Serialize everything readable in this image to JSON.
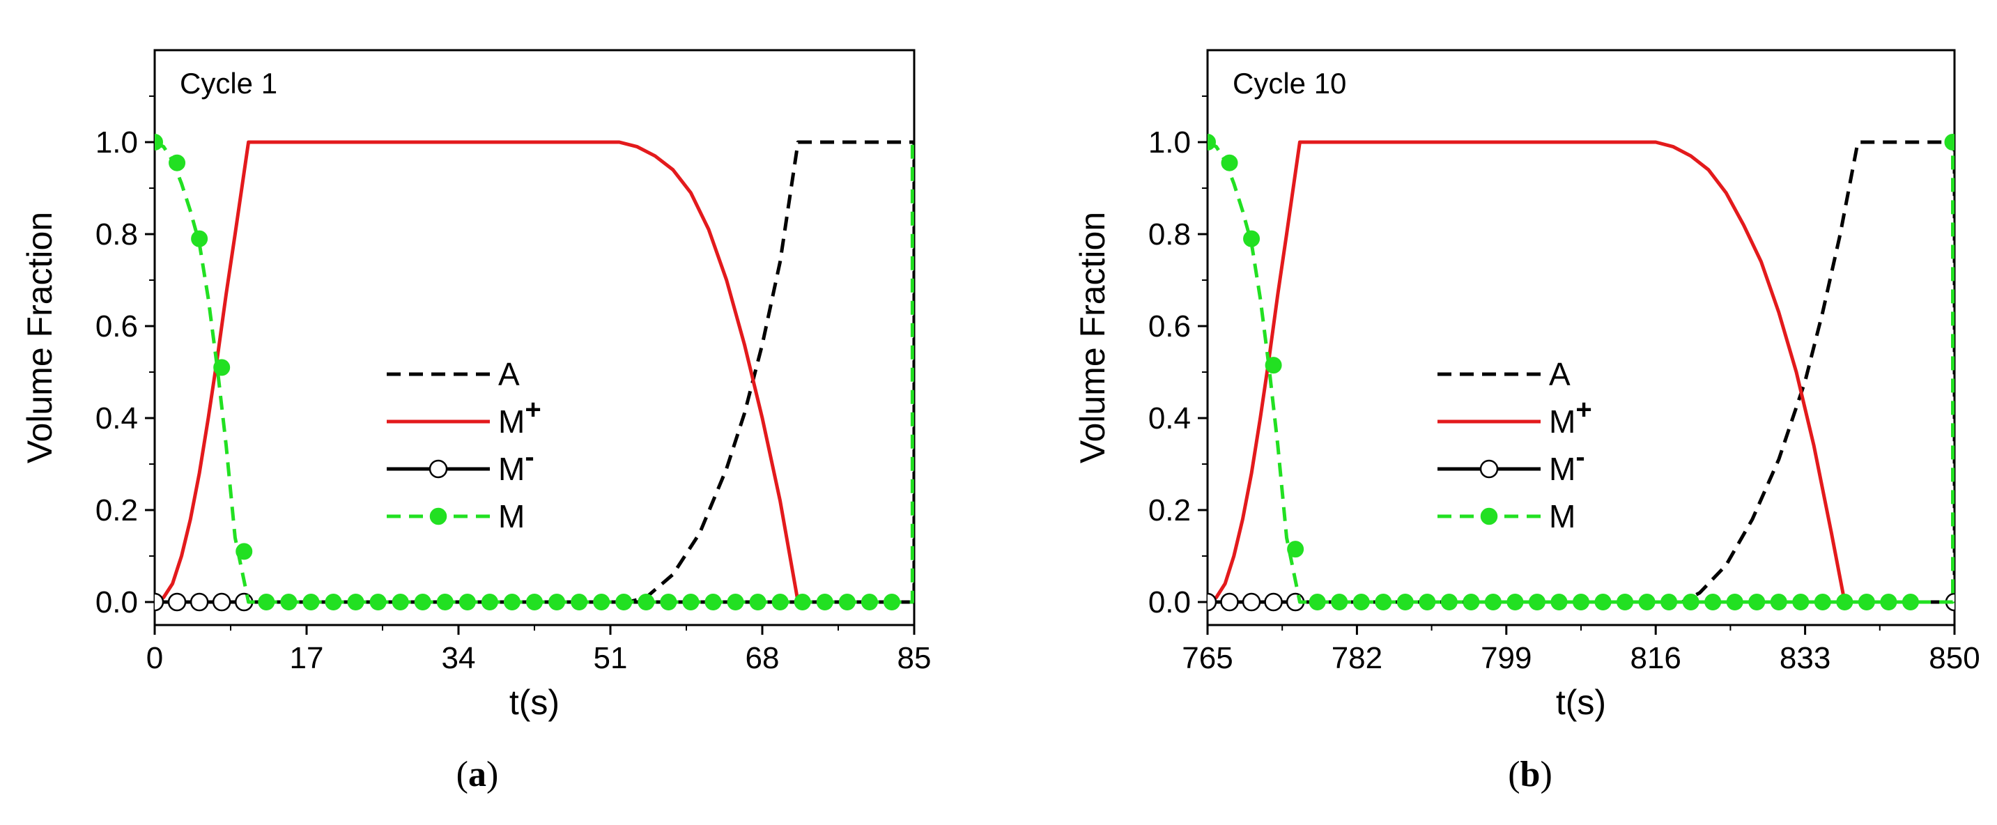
{
  "colors": {
    "A": "#000000",
    "M_plus": "#e31a1c",
    "M_minus": "#000000",
    "M": "#22e022"
  },
  "chart_data": [
    {
      "type": "line",
      "panel_label": "a",
      "title": "Cycle 1",
      "xlabel": "t(s)",
      "ylabel": "Volume Fraction",
      "xlim": [
        0,
        85
      ],
      "ylim": [
        -0.05,
        1.2
      ],
      "xticks": [
        0,
        17,
        34,
        51,
        68,
        85
      ],
      "xtick_labels": [
        "0",
        "17",
        "34",
        "51",
        "68",
        "85"
      ],
      "yticks": [
        0.0,
        0.2,
        0.4,
        0.6,
        0.8,
        1.0
      ],
      "ytick_labels": [
        "0.0",
        "0.2",
        "0.4",
        "0.6",
        "0.8",
        "1.0"
      ],
      "legend": [
        {
          "key": "A",
          "label": "A",
          "sup": ""
        },
        {
          "key": "M_plus",
          "label": "M",
          "sup": "+"
        },
        {
          "key": "M_minus",
          "label": "M",
          "sup": "-"
        },
        {
          "key": "M",
          "label": "M",
          "sup": ""
        }
      ],
      "series": [
        {
          "key": "A",
          "name": "A",
          "style": "dashed",
          "x": [
            0,
            53,
            55,
            58,
            61,
            64,
            66,
            68,
            70,
            72,
            85,
            85
          ],
          "y": [
            0,
            0,
            0.01,
            0.06,
            0.15,
            0.29,
            0.41,
            0.56,
            0.74,
            1.0,
            1.0,
            0
          ]
        },
        {
          "key": "M_plus",
          "name": "M+",
          "style": "solid",
          "x": [
            0,
            1,
            2,
            3,
            4,
            5,
            6,
            7,
            8,
            9,
            10.5,
            52,
            54,
            56,
            58,
            60,
            62,
            64,
            66,
            68,
            70,
            72,
            85
          ],
          "y": [
            0,
            0.01,
            0.04,
            0.1,
            0.18,
            0.28,
            0.4,
            0.53,
            0.67,
            0.8,
            1.0,
            1.0,
            0.99,
            0.97,
            0.94,
            0.89,
            0.81,
            0.7,
            0.56,
            0.4,
            0.22,
            0,
            0
          ]
        },
        {
          "key": "M_minus",
          "name": "M-",
          "style": "solid-open-markers",
          "x": [
            0,
            85
          ],
          "y": [
            0,
            0
          ],
          "marker_x": [
            0,
            2.5,
            5,
            7.5,
            10
          ],
          "marker_y": [
            0,
            0,
            0,
            0,
            0
          ]
        },
        {
          "key": "M",
          "name": "M",
          "style": "dashed-filled-markers",
          "x": [
            0,
            1,
            2,
            3,
            4,
            5,
            6,
            7,
            8,
            9,
            10.5,
            84.8,
            84.8
          ],
          "y": [
            1.0,
            0.99,
            0.96,
            0.91,
            0.85,
            0.78,
            0.66,
            0.51,
            0.34,
            0.14,
            0,
            0,
            1.0
          ],
          "marker_x": [
            0,
            2.5,
            5,
            7.5,
            10,
            12.5,
            15,
            17.5,
            20,
            22.5,
            25,
            27.5,
            30,
            32.5,
            35,
            37.5,
            40,
            42.5,
            45,
            47.5,
            50,
            52.5,
            55,
            57.5,
            60,
            62.5,
            65,
            67.5,
            70,
            72.5,
            75,
            77.5,
            80,
            82.5
          ],
          "marker_y": [
            1.0,
            0.955,
            0.79,
            0.51,
            0.11,
            0,
            0,
            0,
            0,
            0,
            0,
            0,
            0,
            0,
            0,
            0,
            0,
            0,
            0,
            0,
            0,
            0,
            0,
            0,
            0,
            0,
            0,
            0,
            0,
            0,
            0,
            0,
            0,
            0
          ]
        }
      ]
    },
    {
      "type": "line",
      "panel_label": "b",
      "title": "Cycle 10",
      "xlabel": "t(s)",
      "ylabel": "Volume Fraction",
      "xlim": [
        765,
        850
      ],
      "ylim": [
        -0.05,
        1.2
      ],
      "xticks": [
        765,
        782,
        799,
        816,
        833,
        850
      ],
      "xtick_labels": [
        "765",
        "782",
        "799",
        "816",
        "833",
        "850"
      ],
      "yticks": [
        0.0,
        0.2,
        0.4,
        0.6,
        0.8,
        1.0
      ],
      "ytick_labels": [
        "0.0",
        "0.2",
        "0.4",
        "0.6",
        "0.8",
        "1.0"
      ],
      "legend": [
        {
          "key": "A",
          "label": "A",
          "sup": ""
        },
        {
          "key": "M_plus",
          "label": "M",
          "sup": "+"
        },
        {
          "key": "M_minus",
          "label": "M",
          "sup": "-"
        },
        {
          "key": "M",
          "label": "M",
          "sup": ""
        }
      ],
      "series": [
        {
          "key": "A",
          "name": "A",
          "style": "dashed",
          "x": [
            765,
            819,
            821,
            824,
            827,
            830,
            833,
            835,
            837,
            839,
            850,
            850
          ],
          "y": [
            0,
            0,
            0.02,
            0.08,
            0.18,
            0.31,
            0.48,
            0.63,
            0.8,
            1.0,
            1.0,
            0
          ]
        },
        {
          "key": "M_plus",
          "name": "M+",
          "style": "solid",
          "x": [
            765,
            766,
            767,
            768,
            769,
            770,
            771,
            772,
            773,
            774,
            775.5,
            816,
            818,
            820,
            822,
            824,
            826,
            828,
            830,
            832,
            834,
            836,
            837.5,
            850
          ],
          "y": [
            0,
            0.01,
            0.04,
            0.1,
            0.18,
            0.28,
            0.4,
            0.53,
            0.67,
            0.8,
            1.0,
            1.0,
            0.99,
            0.97,
            0.94,
            0.89,
            0.82,
            0.74,
            0.63,
            0.5,
            0.34,
            0.15,
            0,
            0
          ]
        },
        {
          "key": "M_minus",
          "name": "M-",
          "style": "solid-open-markers",
          "x": [
            765,
            850
          ],
          "y": [
            0,
            0
          ],
          "marker_x": [
            765,
            767.5,
            770,
            772.5,
            775,
            850
          ],
          "marker_y": [
            0,
            0,
            0,
            0,
            0,
            0
          ]
        },
        {
          "key": "M",
          "name": "M",
          "style": "dashed-filled-markers",
          "x": [
            765,
            766,
            767,
            768,
            769,
            770,
            771,
            772,
            773,
            774,
            775.5,
            849.8,
            849.8
          ],
          "y": [
            1.0,
            0.99,
            0.96,
            0.91,
            0.85,
            0.78,
            0.66,
            0.51,
            0.34,
            0.14,
            0,
            0,
            1.0
          ],
          "marker_x": [
            765,
            767.5,
            770,
            772.5,
            775,
            777.5,
            780,
            782.5,
            785,
            787.5,
            790,
            792.5,
            795,
            797.5,
            800,
            802.5,
            805,
            807.5,
            810,
            812.5,
            815,
            817.5,
            820,
            822.5,
            825,
            827.5,
            830,
            832.5,
            835,
            837.5,
            840,
            842.5,
            845,
            849.8
          ],
          "marker_y": [
            1.0,
            0.955,
            0.79,
            0.515,
            0.115,
            0,
            0,
            0,
            0,
            0,
            0,
            0,
            0,
            0,
            0,
            0,
            0,
            0,
            0,
            0,
            0,
            0,
            0,
            0,
            0,
            0,
            0,
            0,
            0,
            0,
            0,
            0,
            0,
            1.0
          ]
        }
      ]
    }
  ]
}
